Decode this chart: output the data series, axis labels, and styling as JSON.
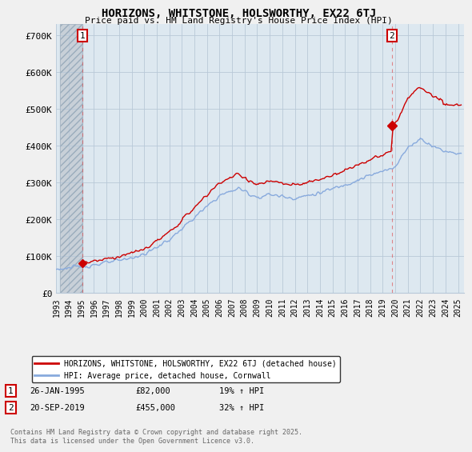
{
  "title": "HORIZONS, WHITSTONE, HOLSWORTHY, EX22 6TJ",
  "subtitle": "Price paid vs. HM Land Registry's House Price Index (HPI)",
  "ylabel_ticks": [
    "£0",
    "£100K",
    "£200K",
    "£300K",
    "£400K",
    "£500K",
    "£600K",
    "£700K"
  ],
  "ytick_values": [
    0,
    100000,
    200000,
    300000,
    400000,
    500000,
    600000,
    700000
  ],
  "ylim": [
    0,
    730000
  ],
  "xlim_start": 1993.3,
  "xlim_end": 2025.5,
  "sale1_year": 1995.07,
  "sale1_price": 82000,
  "sale2_year": 2019.72,
  "sale2_price": 455000,
  "legend_line1": "HORIZONS, WHITSTONE, HOLSWORTHY, EX22 6TJ (detached house)",
  "legend_line2": "HPI: Average price, detached house, Cornwall",
  "footer": "Contains HM Land Registry data © Crown copyright and database right 2025.\nThis data is licensed under the Open Government Licence v3.0.",
  "line_color_property": "#cc0000",
  "line_color_hpi": "#88aadd",
  "bg_color": "#f0f0f0",
  "plot_bg": "#dde8f0",
  "hatch_bg": "#c8d0d8",
  "grid_color": "#b8c8d8",
  "marker_color": "#cc0000",
  "dashed_color": "#dd4444"
}
